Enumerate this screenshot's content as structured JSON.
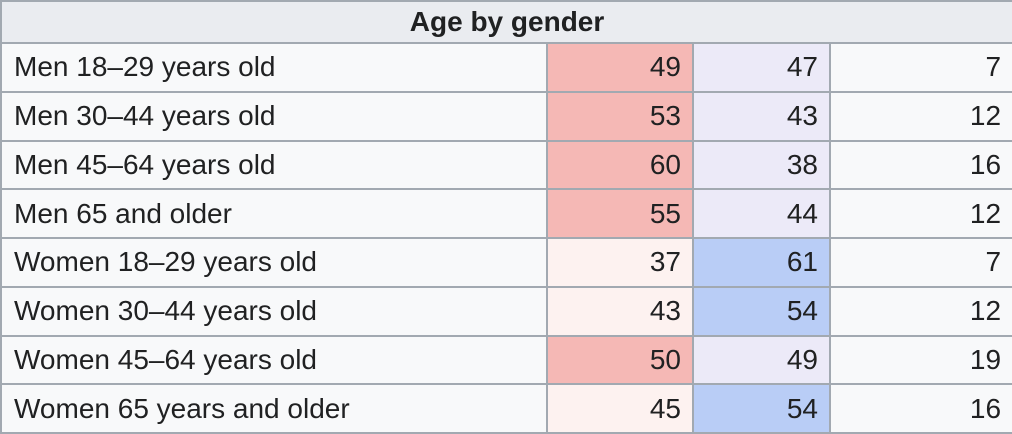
{
  "colors": {
    "outer_border": "#72777d",
    "inner_border": "#a2a9b1",
    "header_bg": "#eaecf0",
    "cell_bg": "#f8f9fa",
    "text": "#202122",
    "shading": {
      "pink_strong": "#f5b8b5",
      "pink_faint": "#fdf2f0",
      "lavender": "#eceaf8",
      "blue": "#b9cdf6",
      "plain": "#f8f9fa"
    }
  },
  "chart_data": {
    "type": "table",
    "title": "Age by gender",
    "legend_position": "none",
    "grid": true,
    "rows": [
      {
        "label": "Men 18–29 years old",
        "values": [
          49,
          47,
          7
        ],
        "shading": [
          "pink_strong",
          "lavender",
          "plain"
        ]
      },
      {
        "label": "Men 30–44 years old",
        "values": [
          53,
          43,
          12
        ],
        "shading": [
          "pink_strong",
          "lavender",
          "plain"
        ]
      },
      {
        "label": "Men 45–64 years old",
        "values": [
          60,
          38,
          16
        ],
        "shading": [
          "pink_strong",
          "lavender",
          "plain"
        ]
      },
      {
        "label": "Men 65 and older",
        "values": [
          55,
          44,
          12
        ],
        "shading": [
          "pink_strong",
          "lavender",
          "plain"
        ]
      },
      {
        "label": "Women 18–29 years old",
        "values": [
          37,
          61,
          7
        ],
        "shading": [
          "pink_faint",
          "blue",
          "plain"
        ]
      },
      {
        "label": "Women 30–44 years old",
        "values": [
          43,
          54,
          12
        ],
        "shading": [
          "pink_faint",
          "blue",
          "plain"
        ]
      },
      {
        "label": "Women 45–64 years old",
        "values": [
          50,
          49,
          19
        ],
        "shading": [
          "pink_strong",
          "lavender",
          "plain"
        ]
      },
      {
        "label": "Women 65 years and older",
        "values": [
          45,
          54,
          16
        ],
        "shading": [
          "pink_faint",
          "blue",
          "plain"
        ]
      }
    ]
  }
}
